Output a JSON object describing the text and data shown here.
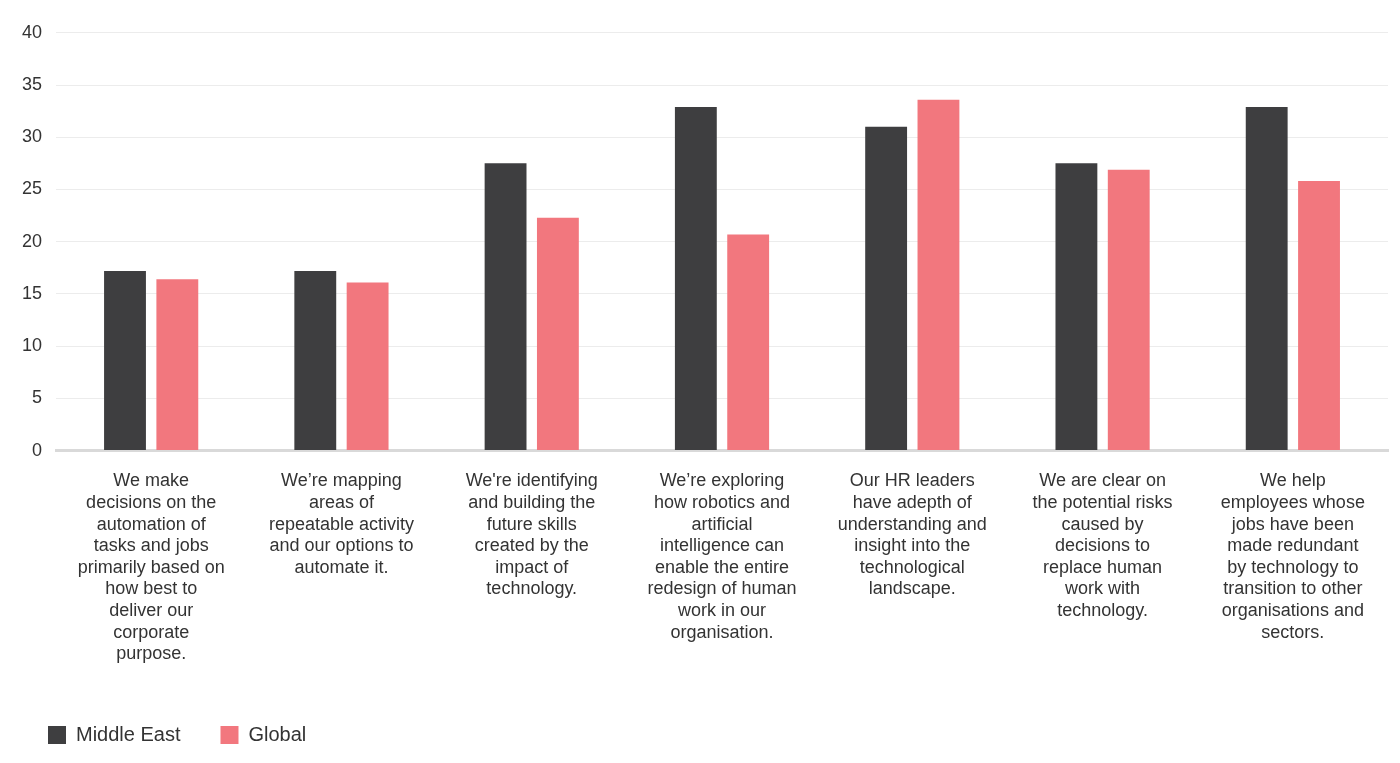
{
  "chart_data": {
    "type": "bar",
    "categories": [
      "We make decisions on the automation of tasks and jobs primarily based on how best to deliver our corporate purpose.",
      "We’re mapping areas of repeatable activity and our options to automate it.",
      "We're identifying and building the future skills created by the impact of technology.",
      "We’re exploring how robotics and artificial intelligence can enable the entire redesign of human work in our organisation.",
      "Our HR leaders have adepth of understanding and insight into the technological landscape.",
      "We are clear on the potential risks caused by decisions to replace human work with technology.",
      "We help employees whose jobs have been made redundant by technology to transition to other organisations and sectors."
    ],
    "series": [
      {
        "name": "Middle East",
        "color": "#3e3e40",
        "values": [
          17.2,
          17.2,
          27.5,
          32.9,
          31.0,
          27.5,
          32.9
        ]
      },
      {
        "name": "Global",
        "color": "#f2777e",
        "values": [
          16.4,
          16.1,
          22.3,
          20.7,
          33.6,
          26.9,
          25.8
        ]
      }
    ],
    "ylim": [
      0,
      40
    ],
    "yticks": [
      0,
      5,
      10,
      15,
      20,
      25,
      30,
      35,
      40
    ],
    "grid": "y",
    "legend": "bottom left"
  }
}
